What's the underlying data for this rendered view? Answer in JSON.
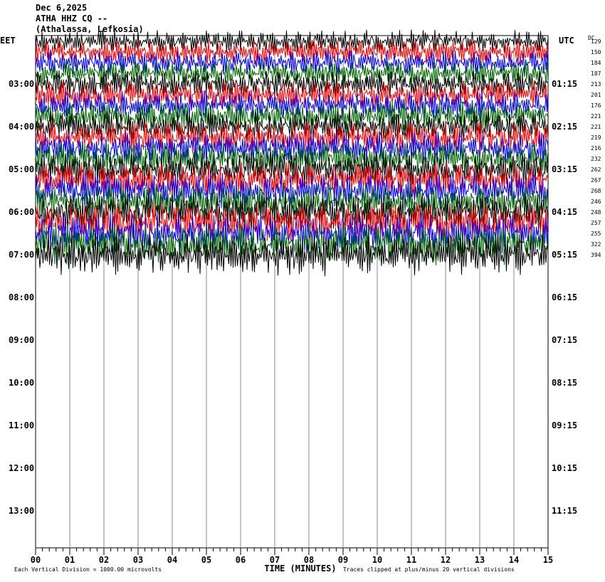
{
  "header": {
    "date": "Dec 6,2025",
    "station": "ATHA HHZ CQ --",
    "location": "(Athalassa, Lefkosia)"
  },
  "chart_data": {
    "type": "helicorder",
    "left_axis_label": "EET",
    "right_axis_label": "UTC",
    "dc_label": "DC",
    "left_times": [
      "03:00",
      "04:00",
      "05:00",
      "06:00",
      "07:00",
      "08:00",
      "09:00",
      "10:00",
      "11:00",
      "12:00",
      "13:00"
    ],
    "right_times": [
      "01:15",
      "02:15",
      "03:15",
      "04:15",
      "05:15",
      "06:15",
      "07:15",
      "08:15",
      "09:15",
      "10:15",
      "11:15"
    ],
    "dc_values": [
      129,
      150,
      184,
      187,
      213,
      201,
      176,
      221,
      221,
      219,
      216,
      232,
      262,
      267,
      268,
      246,
      248,
      257,
      255,
      322,
      394
    ],
    "colors": [
      "#000000",
      "#ff0000",
      "#0000ff",
      "#006600"
    ],
    "xlabel": "TIME (MINUTES)",
    "xlim": [
      0,
      15
    ],
    "xticks": [
      {
        "value": 0,
        "label": "00"
      },
      {
        "value": 1,
        "label": "01"
      },
      {
        "value": 2,
        "label": "02"
      },
      {
        "value": 3,
        "label": "03"
      },
      {
        "value": 4,
        "label": "04"
      },
      {
        "value": 5,
        "label": "05"
      },
      {
        "value": 6,
        "label": "06"
      },
      {
        "value": 7,
        "label": "07"
      },
      {
        "value": 8,
        "label": "08"
      },
      {
        "value": 9,
        "label": "09"
      },
      {
        "value": 10,
        "label": "10"
      },
      {
        "value": 11,
        "label": "11"
      },
      {
        "value": 12,
        "label": "12"
      },
      {
        "value": 13,
        "label": "13"
      },
      {
        "value": 14,
        "label": "14"
      },
      {
        "value": 15,
        "label": "15"
      }
    ],
    "footer_left": "Each Vertical Division = 1000.00 microvolts",
    "footer_right": "Traces clipped at plus/minus 20 vertical divisions"
  }
}
